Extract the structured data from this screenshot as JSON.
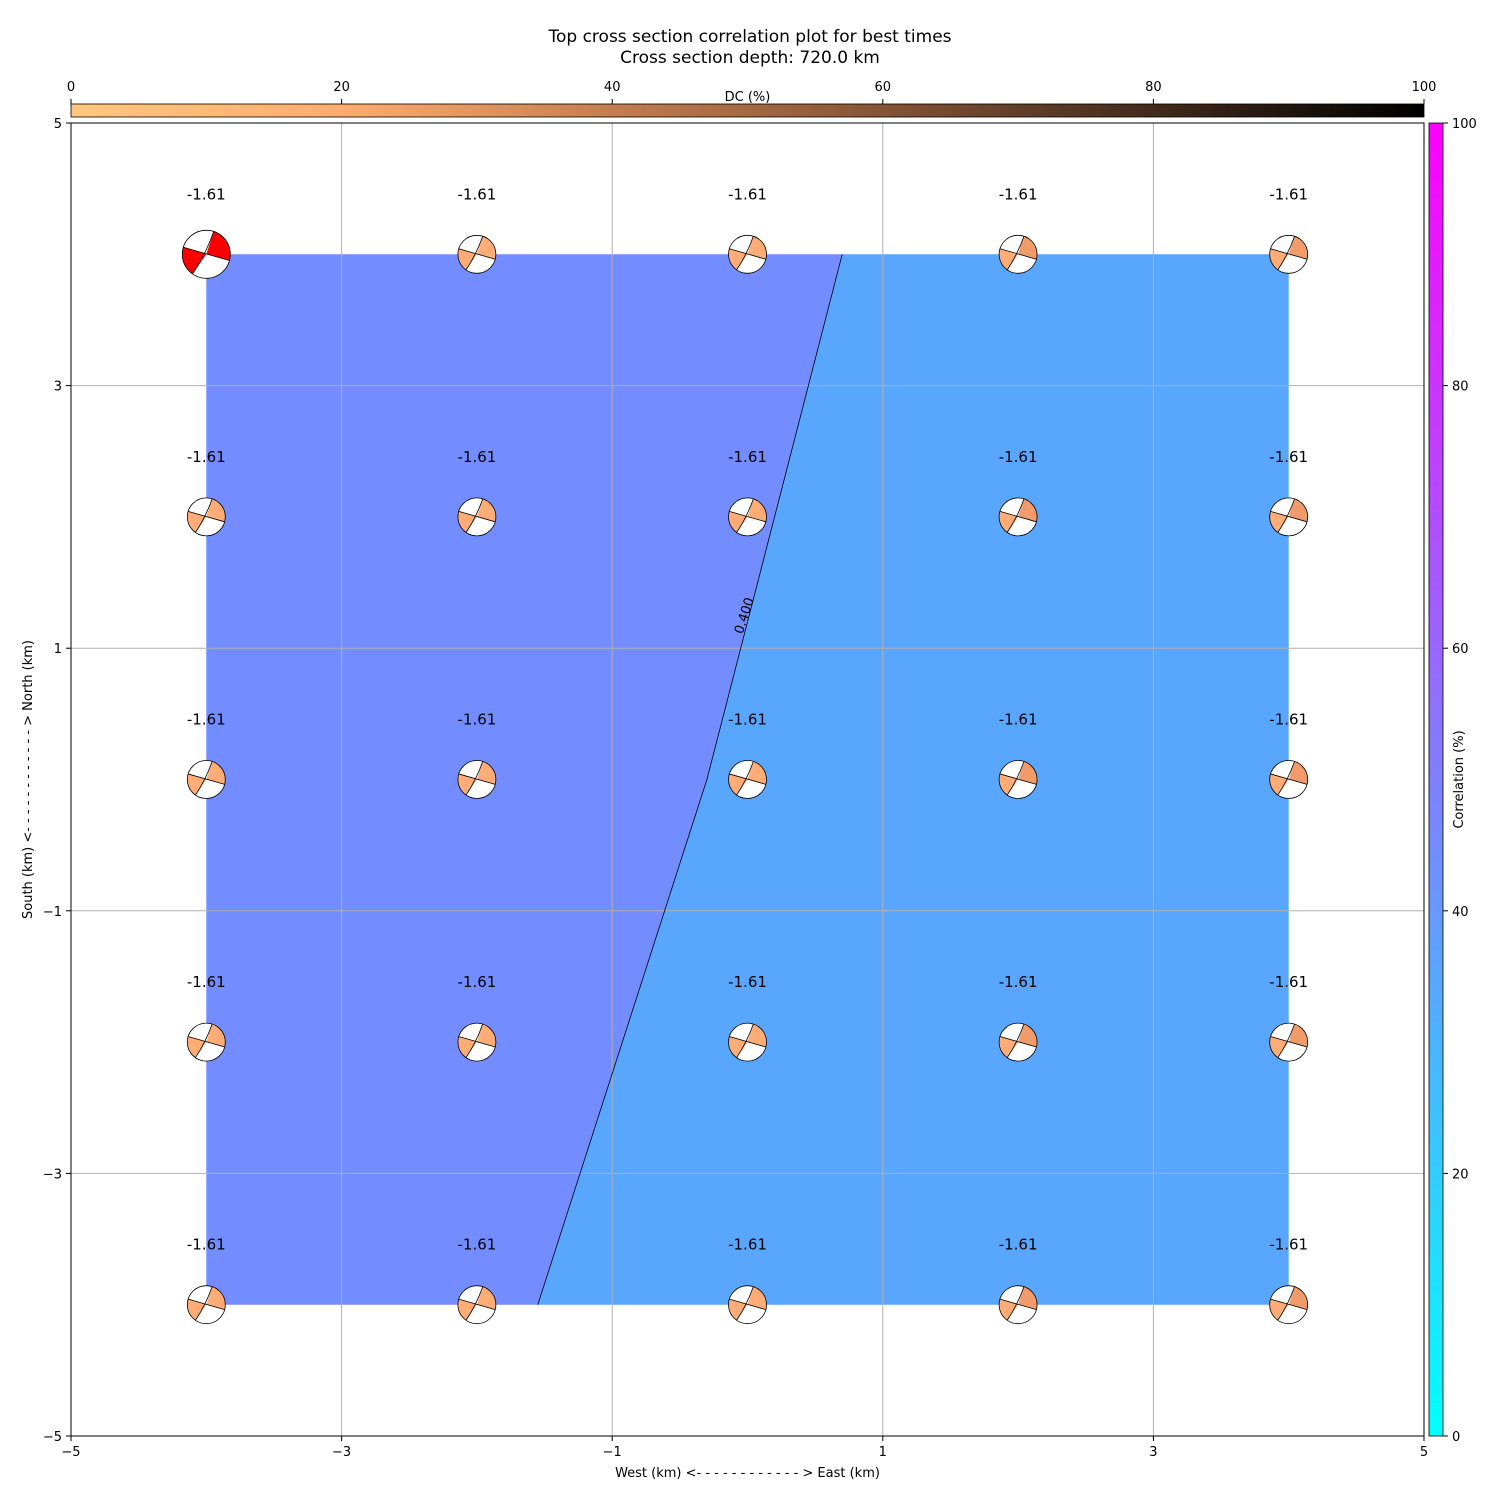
{
  "title": "Top cross section correlation plot for best times",
  "subtitle": "Cross section depth: 720.0 km",
  "chart_data": {
    "type": "heatmap",
    "xlabel": "West (km) <- - - - - - - - - - - - > East (km)",
    "ylabel": "South (km) <- - - - - - - - - - - - > North (km)",
    "xlim": [
      -5,
      5
    ],
    "ylim": [
      -5,
      5
    ],
    "xticks": [
      -5,
      -3,
      -1,
      1,
      3,
      5
    ],
    "yticks": [
      -5,
      -3,
      -1,
      1,
      3,
      5
    ],
    "xtick_labels": [
      "−5",
      "−3",
      "−1",
      "1",
      "3",
      "5"
    ],
    "ytick_labels": [
      "−5",
      "−3",
      "−1",
      "1",
      "3",
      "5"
    ],
    "grid": true,
    "grid_x": [
      -4,
      -2,
      0,
      2,
      4
    ],
    "grid_y": [
      4,
      2,
      0,
      -2,
      -4
    ],
    "fill_extent": {
      "x": [
        -4,
        4
      ],
      "y": [
        -4,
        4
      ]
    },
    "contour": {
      "level_label": "0.400",
      "points": [
        [
          0.7,
          4
        ],
        [
          -0.3,
          0.0
        ],
        [
          -1.55,
          -4
        ]
      ],
      "label_at": [
        -0.03,
        1.25
      ],
      "label_rotation": -72
    },
    "regions": {
      "low_color": "#738cff",
      "high_color": "#59a6ff"
    },
    "point_value_label": "-1.61",
    "best_point": [
      -4,
      4
    ],
    "best_color": "#ff0000",
    "beachball_fill_west": "#ffac76",
    "beachball_fill_east": "#f09b69",
    "dc_colorbar": {
      "label": "DC (%)",
      "range": [
        0,
        100
      ],
      "ticks": [
        0,
        20,
        40,
        60,
        80,
        100
      ],
      "colormap": "copper_r",
      "stops": [
        "#ffc77f",
        "#ffac6e",
        "#c47d50",
        "#845436",
        "#422a1b",
        "#000000"
      ]
    },
    "corr_colorbar": {
      "label": "Correlation (%)",
      "range": [
        0,
        100
      ],
      "ticks": [
        0,
        20,
        40,
        60,
        80,
        100
      ],
      "colormap": "cool",
      "stops": [
        "#00ffff",
        "#ff00ff"
      ]
    }
  }
}
